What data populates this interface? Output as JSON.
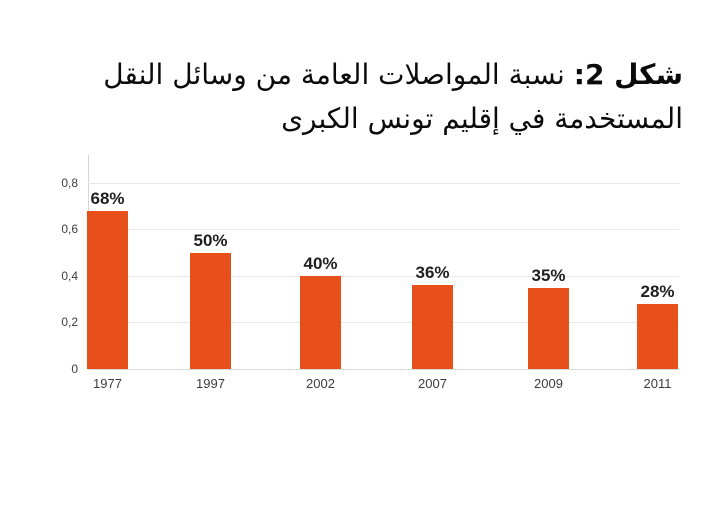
{
  "title": {
    "prefix": "شكل 2:",
    "line1_rest": "نسبة المواصلات العامة من وسائل النقل",
    "line2": "المستخدمة في إقليم تونس الكبرى"
  },
  "chart_data": {
    "type": "bar",
    "title": "شكل 2: نسبة المواصلات العامة من وسائل النقل المستخدمة في إقليم تونس الكبرى",
    "categories": [
      "1977",
      "1997",
      "2002",
      "2007",
      "2009",
      "2011"
    ],
    "values": [
      0.68,
      0.5,
      0.4,
      0.36,
      0.35,
      0.28
    ],
    "value_labels": [
      "68%",
      "50%",
      "40%",
      "36%",
      "35%",
      "28%"
    ],
    "y_ticks": [
      {
        "value": 0.0,
        "label": "0"
      },
      {
        "value": 0.2,
        "label": "0,2"
      },
      {
        "value": 0.4,
        "label": "0,4"
      },
      {
        "value": 0.6,
        "label": "0,6"
      },
      {
        "value": 0.8,
        "label": "0,8"
      }
    ],
    "ylim": [
      0,
      0.92
    ],
    "xlabel": "",
    "ylabel": "",
    "grid": true,
    "legend": false,
    "bar_color": "#e8501b",
    "gridline_color": "#e7e7e7",
    "axis_color": "#d6d6d6",
    "label_color": "#1f1f1f",
    "tick_color": "#3d3d3d"
  }
}
